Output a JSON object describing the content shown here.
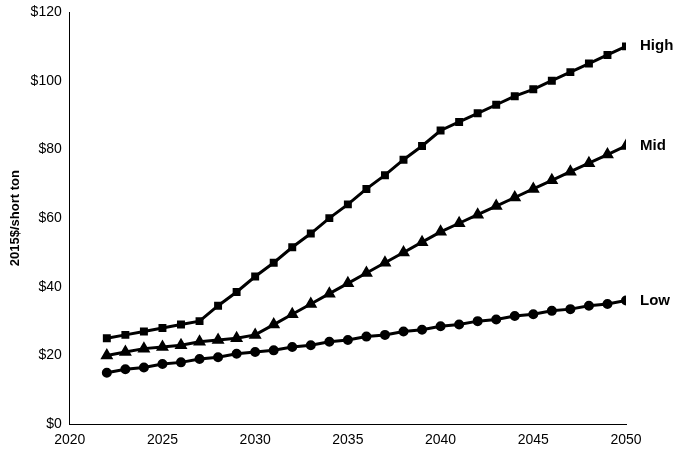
{
  "chart_data": {
    "type": "line",
    "y_label": "2015$/short ton",
    "x": [
      2022,
      2023,
      2024,
      2025,
      2026,
      2027,
      2028,
      2029,
      2030,
      2031,
      2032,
      2033,
      2034,
      2035,
      2036,
      2037,
      2038,
      2039,
      2040,
      2041,
      2042,
      2043,
      2044,
      2045,
      2046,
      2047,
      2048,
      2049,
      2050
    ],
    "series": [
      {
        "name": "High",
        "color": "#000000",
        "marker": "square",
        "line_style": "solid",
        "values": [
          25,
          26,
          27,
          28,
          29,
          30,
          34.5,
          38.5,
          43,
          47,
          51.5,
          55.5,
          60,
          64,
          68.5,
          72.5,
          77,
          81,
          85.5,
          88,
          90.5,
          93,
          95.5,
          97.5,
          100,
          102.5,
          105,
          107.5,
          110
        ]
      },
      {
        "name": "Mid",
        "color": "#000000",
        "marker": "triangle",
        "line_style": "solid",
        "values": [
          20,
          21,
          22,
          22.5,
          23,
          24,
          24.5,
          25,
          26,
          29,
          32,
          35,
          38,
          41,
          44,
          47,
          50,
          53,
          56,
          58.5,
          61,
          63.5,
          66,
          68.5,
          71,
          73.5,
          76,
          78.5,
          81
        ]
      },
      {
        "name": "Low",
        "color": "#000000",
        "marker": "circle",
        "line_style": "solid",
        "values": [
          15,
          16,
          16.5,
          17.5,
          18,
          19,
          19.5,
          20.5,
          21,
          21.5,
          22.5,
          23,
          24,
          24.5,
          25.5,
          26,
          27,
          27.5,
          28.5,
          29,
          30,
          30.5,
          31.5,
          32,
          33,
          33.5,
          34.5,
          35,
          36
        ]
      }
    ],
    "xlim": [
      2020,
      2050
    ],
    "xticks": [
      2020,
      2025,
      2030,
      2035,
      2040,
      2045,
      2050
    ],
    "ylim": [
      0,
      120
    ],
    "yticks": [
      {
        "value": 0,
        "label": "$0"
      },
      {
        "value": 20,
        "label": "$20"
      },
      {
        "value": 40,
        "label": "$40"
      },
      {
        "value": 60,
        "label": "$60"
      },
      {
        "value": 80,
        "label": "$80"
      },
      {
        "value": 100,
        "label": "$100"
      },
      {
        "value": 120,
        "label": "$120"
      }
    ],
    "grid": false
  }
}
